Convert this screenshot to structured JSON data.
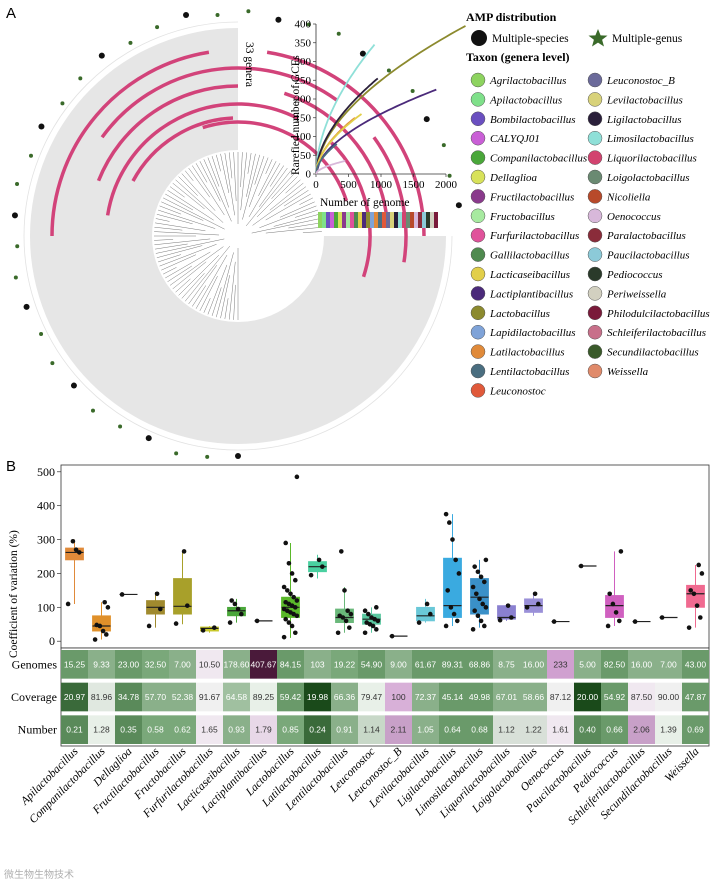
{
  "panel_a": {
    "letter": "A",
    "genera_count_label": "33 genera",
    "amp_distribution": {
      "title": "AMP distribution",
      "species_label": "Multiple-species",
      "genus_label": "Multiple-genus"
    },
    "taxon_title": "Taxon (genera level)",
    "taxa": [
      {
        "name": "Agrilactobacillus",
        "color": "#8dd35f"
      },
      {
        "name": "Apilactobacillus",
        "color": "#7fe08a"
      },
      {
        "name": "Bombilactobacillus",
        "color": "#6a4fc0"
      },
      {
        "name": "CALYQJ01",
        "color": "#c95fd6"
      },
      {
        "name": "Companilactobacillus",
        "color": "#4aa73a"
      },
      {
        "name": "Dellaglioa",
        "color": "#d8e25a"
      },
      {
        "name": "Fructilactobacillus",
        "color": "#8a3a8c"
      },
      {
        "name": "Fructobacillus",
        "color": "#a7eaa0"
      },
      {
        "name": "Furfurilactobacillus",
        "color": "#e0529b"
      },
      {
        "name": "Gallilactobacillus",
        "color": "#4f8a4f"
      },
      {
        "name": "Lacticaseibacillus",
        "color": "#e2cf4a"
      },
      {
        "name": "Lactiplantibacillus",
        "color": "#4b2a7a"
      },
      {
        "name": "Lactobacillus",
        "color": "#8c8a2e"
      },
      {
        "name": "Lapidilactobacillus",
        "color": "#7fa3d8"
      },
      {
        "name": "Latilactobacillus",
        "color": "#e08a3a"
      },
      {
        "name": "Lentilactobacillus",
        "color": "#4a6e80"
      },
      {
        "name": "Leuconostoc",
        "color": "#e0593a"
      },
      {
        "name": "Leuconostoc_B",
        "color": "#6b6a9a"
      },
      {
        "name": "Levilactobacillus",
        "color": "#d8d27a"
      },
      {
        "name": "Ligilactobacillus",
        "color": "#2a1f3a"
      },
      {
        "name": "Limosilactobacillus",
        "color": "#8fe0d8"
      },
      {
        "name": "Liquorilactobacillus",
        "color": "#d2436f"
      },
      {
        "name": "Loigolactobacillus",
        "color": "#6a8a72"
      },
      {
        "name": "Nicoliella",
        "color": "#b84a2a"
      },
      {
        "name": "Oenococcus",
        "color": "#d8b8da"
      },
      {
        "name": "Paralactobacillus",
        "color": "#8a2c3a"
      },
      {
        "name": "Paucilactobacillus",
        "color": "#8ccad8"
      },
      {
        "name": "Pediococcus",
        "color": "#2a3a2a"
      },
      {
        "name": "Periweissella",
        "color": "#d2d0c0"
      },
      {
        "name": "Philodulcilactobacillus",
        "color": "#7a1a3a"
      },
      {
        "name": "Schleiferilactobacillus",
        "color": "#c8708a"
      },
      {
        "name": "Secundilactobacillus",
        "color": "#3a5a2a"
      },
      {
        "name": "Weissella",
        "color": "#e08a6a"
      }
    ],
    "rarefaction": {
      "ylabel": "Rarefied number of GCFs",
      "xlabel": "Number of genome",
      "x_ticks": [
        "0",
        "500",
        "1000",
        "1500",
        "2000"
      ],
      "y_ticks": [
        "0",
        "50",
        "100",
        "150",
        "200",
        "250",
        "300",
        "350",
        "400"
      ],
      "xlim": [
        0,
        2000
      ],
      "ylim": [
        0,
        400
      ],
      "curves": [
        {
          "name": "Lactobacillus",
          "color": "#8c8a2e",
          "max_x": 2300,
          "max_y": 395
        },
        {
          "name": "Lactiplantibacillus",
          "color": "#4b2a7a",
          "max_x": 1850,
          "max_y": 225
        },
        {
          "name": "Limosilactobacillus",
          "color": "#8fe0d8",
          "max_x": 900,
          "max_y": 345
        },
        {
          "name": "Ligilactobacillus",
          "color": "#2a1f3a",
          "max_x": 950,
          "max_y": 255
        },
        {
          "name": "Latilactobacillus",
          "color": "#e08a3a",
          "max_x": 600,
          "max_y": 150
        },
        {
          "name": "Lacticaseibacillus",
          "color": "#e2cf4a",
          "max_x": 700,
          "max_y": 160
        },
        {
          "name": "Lentilactobacillus",
          "color": "#4a6e80",
          "max_x": 320,
          "max_y": 80
        },
        {
          "name": "Oenococcus",
          "color": "#d8b8da",
          "max_x": 450,
          "max_y": 35
        }
      ]
    }
  },
  "panel_b": {
    "letter": "B",
    "ylabel": "Coefficient of variation (%)",
    "y_ticks": [
      "0",
      "100",
      "200",
      "300",
      "400",
      "500"
    ],
    "ylim": [
      -20,
      520
    ],
    "row_labels": [
      "Genomes",
      "Coverage",
      "Number"
    ],
    "watermark": "微生物生物技术"
  },
  "chart_data": {
    "type": "box",
    "title": "",
    "ylabel": "Coefficient of variation (%)",
    "ylim": [
      0,
      500
    ],
    "categories": [
      "Apilactobacillus",
      "Companilactobacillus",
      "Dellaglioa",
      "Fructilactobacillus",
      "Fructobacillus",
      "Furfurilactobacillus",
      "Lacticaseibacillus",
      "Lactiplantibacillus",
      "Lactobacillus",
      "Latilactobacillus",
      "Lentilactobacillus",
      "Leuconostoc",
      "Leuconostoc_B",
      "Levilactobacillus",
      "Ligilactobacillus",
      "Limosilactobacillus",
      "Liquorilactobacillus",
      "Loigolactobacillus",
      "Oenococcus",
      "Paucilactobacillus",
      "Pediococcus",
      "Schleiferilactobacillus",
      "Secundilactobacillus",
      "Weissella"
    ],
    "colors": [
      "#e08a3a",
      "#e0902a",
      "#3a7a3a",
      "#a08a2e",
      "#a8a02a",
      "#c8c82a",
      "#4aa73a",
      "#4b2a7a",
      "#5ab82a",
      "#4ad0a0",
      "#6ab87a",
      "#5ac8a0",
      "#6a6aa0",
      "#6ac8d8",
      "#3aaae0",
      "#3a90c8",
      "#8a80d0",
      "#9a90d8",
      "#b070c8",
      "#c070c8",
      "#d060c0",
      "#d070b0",
      "#e06090",
      "#f06a90"
    ],
    "box": [
      {
        "min": 110,
        "q1": 240,
        "median": 262,
        "q3": 275,
        "max": 300
      },
      {
        "min": 5,
        "q1": 30,
        "median": 45,
        "q3": 75,
        "max": 115
      },
      {
        "min": 138,
        "q1": 138,
        "median": 138,
        "q3": 138,
        "max": 138
      },
      {
        "min": 40,
        "q1": 80,
        "median": 100,
        "q3": 120,
        "max": 145
      },
      {
        "min": 50,
        "q1": 80,
        "median": 103,
        "q3": 185,
        "max": 265
      },
      {
        "min": 25,
        "q1": 30,
        "median": 38,
        "q3": 42,
        "max": 45
      },
      {
        "min": 55,
        "q1": 75,
        "median": 90,
        "q3": 100,
        "max": 125
      },
      {
        "min": 60,
        "q1": 60,
        "median": 60,
        "q3": 60,
        "max": 60
      },
      {
        "min": 10,
        "q1": 70,
        "median": 100,
        "q3": 130,
        "max": 290
      },
      {
        "min": 185,
        "q1": 205,
        "median": 220,
        "q3": 235,
        "max": 255
      },
      {
        "min": 25,
        "q1": 55,
        "median": 70,
        "q3": 95,
        "max": 160
      },
      {
        "min": 25,
        "q1": 50,
        "median": 65,
        "q3": 80,
        "max": 100
      },
      {
        "min": 15,
        "q1": 15,
        "median": 15,
        "q3": 15,
        "max": 15
      },
      {
        "min": 55,
        "q1": 60,
        "median": 75,
        "q3": 100,
        "max": 125
      },
      {
        "min": 45,
        "q1": 70,
        "median": 105,
        "q3": 245,
        "max": 375
      },
      {
        "min": 40,
        "q1": 80,
        "median": 130,
        "q3": 185,
        "max": 240
      },
      {
        "min": 60,
        "q1": 65,
        "median": 70,
        "q3": 105,
        "max": 110
      },
      {
        "min": 75,
        "q1": 85,
        "median": 105,
        "q3": 125,
        "max": 140
      },
      {
        "min": 58,
        "q1": 58,
        "median": 58,
        "q3": 58,
        "max": 58
      },
      {
        "min": 222,
        "q1": 222,
        "median": 222,
        "q3": 222,
        "max": 222
      },
      {
        "min": 45,
        "q1": 70,
        "median": 105,
        "q3": 135,
        "max": 265
      },
      {
        "min": 58,
        "q1": 58,
        "median": 58,
        "q3": 58,
        "max": 58
      },
      {
        "min": 70,
        "q1": 70,
        "median": 70,
        "q3": 70,
        "max": 70
      },
      {
        "min": 40,
        "q1": 100,
        "median": 140,
        "q3": 165,
        "max": 225
      }
    ],
    "points": [
      [
        110,
        262,
        270,
        295
      ],
      [
        5,
        20,
        30,
        45,
        48,
        100,
        115
      ],
      [
        138
      ],
      [
        45,
        95,
        140
      ],
      [
        52,
        105,
        265
      ],
      [
        32,
        40
      ],
      [
        55,
        80,
        95,
        110,
        120
      ],
      [
        60
      ],
      [
        12,
        25,
        45,
        55,
        65,
        75,
        80,
        85,
        90,
        95,
        100,
        105,
        110,
        115,
        120,
        130,
        140,
        150,
        160,
        180,
        200,
        230,
        290,
        485
      ],
      [
        195,
        220,
        240
      ],
      [
        25,
        40,
        60,
        70,
        75,
        80,
        90,
        150,
        265
      ],
      [
        25,
        35,
        45,
        50,
        55,
        60,
        65,
        70,
        80,
        90,
        100
      ],
      [
        15
      ],
      [
        55,
        80,
        110
      ],
      [
        45,
        60,
        80,
        100,
        150,
        200,
        240,
        300,
        350,
        375
      ],
      [
        35,
        45,
        60,
        75,
        90,
        100,
        110,
        125,
        140,
        160,
        175,
        190,
        205,
        220,
        240
      ],
      [
        62,
        70,
        105
      ],
      [
        100,
        110,
        140
      ],
      [
        58
      ],
      [
        222
      ],
      [
        45,
        60,
        85,
        110,
        140,
        265
      ],
      [
        58
      ],
      [
        70
      ],
      [
        40,
        70,
        105,
        140,
        150,
        200,
        225
      ]
    ],
    "heatmap": {
      "rows": [
        "Genomes",
        "Coverage",
        "Number"
      ],
      "values": [
        [
          "15.25",
          "9.33",
          "23.00",
          "32.50",
          "7.00",
          "10.50",
          "178.60",
          "407.67",
          "84.15",
          "103",
          "19.22",
          "54.90",
          "9.00",
          "61.67",
          "89.31",
          "68.86",
          "8.75",
          "16.00",
          "233",
          "5.00",
          "82.50",
          "16.00",
          "7.00",
          "43.00"
        ],
        [
          "20.97",
          "81.96",
          "34.78",
          "57.70",
          "52.38",
          "91.67",
          "64.58",
          "89.25",
          "59.42",
          "19.98",
          "66.36",
          "79.47",
          "100",
          "72.37",
          "45.14",
          "49.98",
          "67.01",
          "58.66",
          "87.12",
          "20.00",
          "54.92",
          "87.50",
          "90.00",
          "47.87"
        ],
        [
          "0.21",
          "1.28",
          "0.35",
          "0.58",
          "0.62",
          "1.65",
          "0.93",
          "1.79",
          "0.85",
          "0.24",
          "0.91",
          "1.14",
          "2.11",
          "1.05",
          "0.64",
          "0.68",
          "1.12",
          "1.22",
          "1.61",
          "0.40",
          "0.66",
          "2.06",
          "1.39",
          "0.69"
        ]
      ],
      "fill_colors": [
        [
          "#6a9a6a",
          "#8ab08a",
          "#6a9a6a",
          "#7aa87a",
          "#8ab08a",
          "#f0e8f0",
          "#8ab08a",
          "#4a1a3a",
          "#6a9a6a",
          "#8ab08a",
          "#7aa87a",
          "#6a9a6a",
          "#8ab08a",
          "#6a9a6a",
          "#6a9a6a",
          "#6a9a6a",
          "#8ab08a",
          "#8ab08a",
          "#d0a0d0",
          "#8ab08a",
          "#6a9a6a",
          "#8ab08a",
          "#8ab08a",
          "#6a9a6a"
        ],
        [
          "#3a6a3a",
          "#e0e8e0",
          "#5a8a5a",
          "#8ab08a",
          "#8ab08a",
          "#f0f0f0",
          "#a0c0a0",
          "#e8f0e8",
          "#6a9a6a",
          "#1a4a1a",
          "#8ab08a",
          "#e8f0e8",
          "#d8b0d8",
          "#8ab08a",
          "#6a9a6a",
          "#6a9a6a",
          "#8ab08a",
          "#8ab08a",
          "#f0f0f0",
          "#1a4a1a",
          "#6a9a6a",
          "#f0e8f0",
          "#f0f0f0",
          "#6a9a6a"
        ],
        [
          "#5a8a5a",
          "#e8f0e8",
          "#5a8a5a",
          "#7aa87a",
          "#7aa87a",
          "#f0e8f0",
          "#8ab08a",
          "#e8d8e8",
          "#7aa87a",
          "#3a6a3a",
          "#8ab08a",
          "#c8d8c8",
          "#c8a0c8",
          "#8ab08a",
          "#6a9a6a",
          "#6a9a6a",
          "#d8e0d8",
          "#d8e0d8",
          "#f0e8f0",
          "#5a8a5a",
          "#6a9a6a",
          "#c8a0c8",
          "#e8f0e8",
          "#6a9a6a"
        ]
      ]
    }
  }
}
